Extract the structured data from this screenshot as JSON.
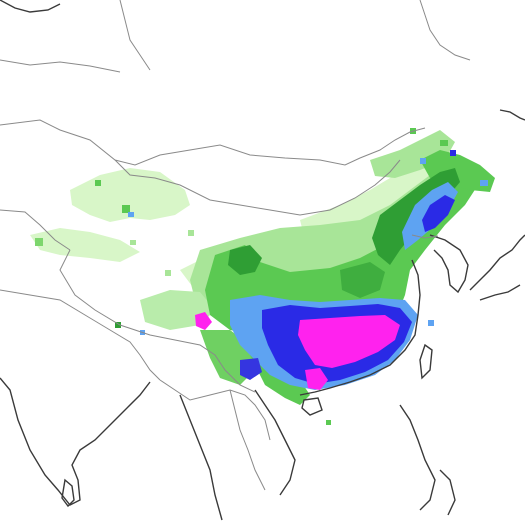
{
  "map": {
    "title": "",
    "region": "East Asia",
    "legend_colors": {
      "very_light": "#d4f5c4",
      "light_green": "#a6e595",
      "green": "#55c84d",
      "dark_green": "#2f9e34",
      "light_blue": "#5aa0f0",
      "blue": "#2a2ae6",
      "magenta": "#ff22ee"
    },
    "border_color": "#8a8a8a",
    "coast_color": "#3a3a3a",
    "background": "#ffffff"
  }
}
